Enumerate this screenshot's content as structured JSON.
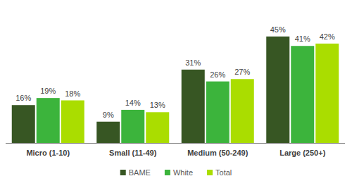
{
  "chart_data": {
    "type": "bar",
    "categories": [
      "Micro (1-10)",
      "Small (11-49)",
      "Medium (50-249)",
      "Large (250+)"
    ],
    "series": [
      {
        "name": "BAME",
        "color": "#375623",
        "values": [
          16,
          9,
          31,
          45
        ],
        "value_labels": [
          "16%",
          "9%",
          "31%",
          "45%"
        ]
      },
      {
        "name": "White",
        "color": "#3cb43c",
        "values": [
          19,
          14,
          26,
          41
        ],
        "value_labels": [
          "19%",
          "14%",
          "26%",
          "41%"
        ]
      },
      {
        "name": "Total",
        "color": "#aadd00",
        "values": [
          18,
          13,
          27,
          42
        ],
        "value_labels": [
          "18%",
          "13%",
          "27%",
          "42%"
        ]
      }
    ],
    "ylim": [
      0,
      50
    ],
    "data_labels": true,
    "tick_labels": "x",
    "grid": false,
    "legend": "bottom"
  }
}
